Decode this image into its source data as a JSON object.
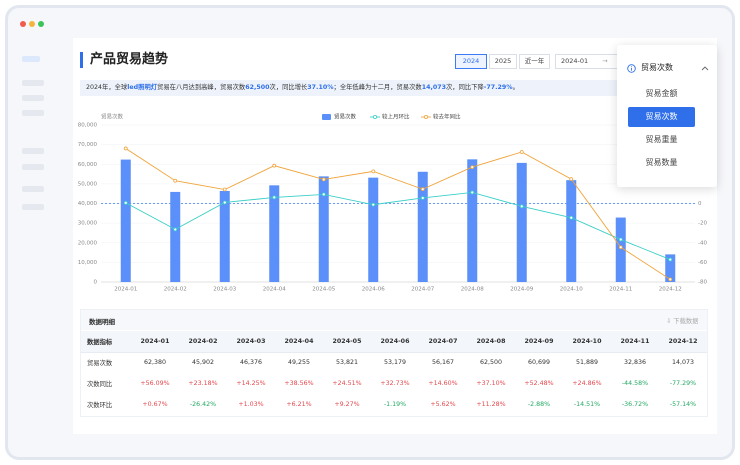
{
  "header": {
    "title": "产品贸易趋势",
    "tabs": [
      "2024",
      "2025",
      "近一年"
    ],
    "active_tab": 0,
    "date_start": "2024-01"
  },
  "dropdown": {
    "selected": "贸易次数",
    "options": [
      "贸易金额",
      "贸易次数",
      "贸易重量",
      "贸易数量"
    ],
    "active_option": 1
  },
  "summary": [
    {
      "text": "2024年，全球",
      "highlight": false
    },
    {
      "text": "led照明灯",
      "highlight": true
    },
    {
      "text": "贸易在八月达到高峰，贸易次数",
      "highlight": false
    },
    {
      "text": "62,500",
      "highlight": true
    },
    {
      "text": "次，同比增长",
      "highlight": false
    },
    {
      "text": "37.10%",
      "highlight": true
    },
    {
      "text": "；全年低峰为十二月，贸易次数",
      "highlight": false
    },
    {
      "text": "14,073",
      "highlight": true
    },
    {
      "text": "次，同比下降",
      "highlight": false
    },
    {
      "text": "-77.29%",
      "highlight": true
    },
    {
      "text": "。",
      "highlight": false
    }
  ],
  "chart_data": {
    "type": "bar",
    "y_axis_label": "贸易次数",
    "categories": [
      "2024-01",
      "2024-02",
      "2024-03",
      "2024-04",
      "2024-05",
      "2024-06",
      "2024-07",
      "2024-08",
      "2024-09",
      "2024-10",
      "2024-11",
      "2024-12"
    ],
    "series": [
      {
        "name": "贸易次数",
        "type": "bar",
        "color": "#5b8ff9",
        "values": [
          62380,
          45902,
          46376,
          49255,
          53821,
          53179,
          56167,
          62500,
          60699,
          51889,
          32836,
          14073
        ]
      },
      {
        "name": "较上月环比",
        "type": "line",
        "axis": "y2",
        "color": "#3ccfc8",
        "values": [
          0.67,
          -26.42,
          1.03,
          6.21,
          9.27,
          -1.19,
          5.62,
          11.28,
          -2.88,
          -14.51,
          -36.72,
          -57.14
        ]
      },
      {
        "name": "较去年同比",
        "type": "line",
        "axis": "y2",
        "color": "#f0a43a",
        "values": [
          56.09,
          23.18,
          14.25,
          38.56,
          24.51,
          32.73,
          14.6,
          37.1,
          52.48,
          24.86,
          -44.58,
          -77.29
        ]
      }
    ],
    "ylim": [
      0,
      80000
    ],
    "yticks": [
      0,
      {
        "value": 10000,
        "label": "10,000"
      },
      {
        "value": 20000,
        "label": "20,000"
      },
      {
        "value": 30000,
        "label": "30,000"
      },
      {
        "value": 40000,
        "label": "40,000"
      },
      {
        "value": 50000,
        "label": "50,000"
      },
      {
        "value": 60000,
        "label": "60,000"
      },
      {
        "value": 70000,
        "label": "70,000"
      },
      {
        "value": 80000,
        "label": "80,000"
      }
    ],
    "y2lim": [
      -80,
      80
    ],
    "y2ticks": [
      0,
      -20,
      -40,
      -60,
      -80
    ],
    "reference_line": {
      "axis": "y2",
      "value": 0,
      "color": "#3b7cf6"
    },
    "grid": true
  },
  "table": {
    "title": "数据明细",
    "download": "下载数据",
    "header": [
      "数据指标",
      "2024-01",
      "2024-02",
      "2024-03",
      "2024-04",
      "2024-05",
      "2024-06",
      "2024-07",
      "2024-08",
      "2024-09",
      "2024-10",
      "2024-11",
      "2024-12"
    ],
    "rows": [
      [
        "贸易次数",
        "62,380",
        "45,902",
        "46,376",
        "49,255",
        "53,821",
        "53,179",
        "56,167",
        "62,500",
        "60,699",
        "51,889",
        "32,836",
        "14,073"
      ],
      [
        "次数同比",
        "+56.09%",
        "+23.18%",
        "+14.25%",
        "+38.56%",
        "+24.51%",
        "+32.73%",
        "+14.60%",
        "+37.10%",
        "+52.48%",
        "+24.86%",
        "-44.58%",
        "-77.29%"
      ],
      [
        "次数环比",
        "+0.67%",
        "-26.42%",
        "+1.03%",
        "+6.21%",
        "+9.27%",
        "-1.19%",
        "+5.62%",
        "+11.28%",
        "-2.88%",
        "-14.51%",
        "-36.72%",
        "-57.14%"
      ]
    ]
  }
}
